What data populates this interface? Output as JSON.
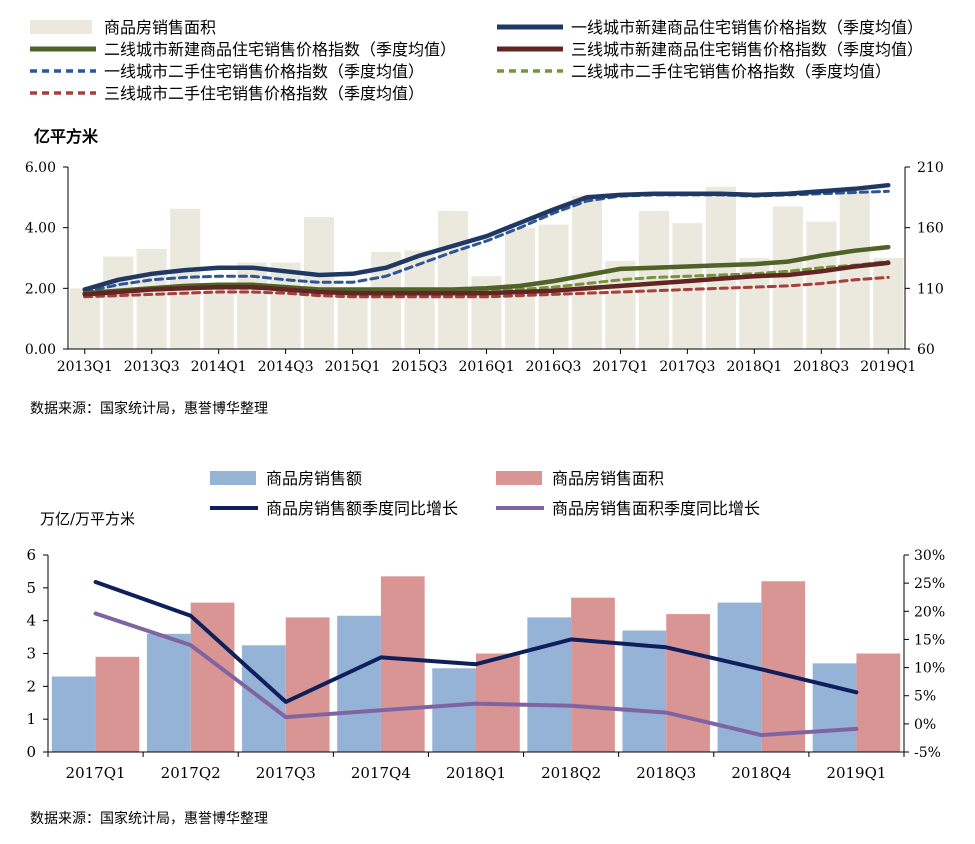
{
  "chart_data": [
    {
      "type": "bar+line",
      "ylabel_left": "亿平方米",
      "ylim_left": [
        0,
        6
      ],
      "yticks_left": [
        "0.00",
        "2.00",
        "4.00",
        "6.00"
      ],
      "ylim_right": [
        60,
        210
      ],
      "yticks_right": [
        "60",
        "110",
        "160",
        "210"
      ],
      "x": [
        "2013Q1",
        "2013Q2",
        "2013Q3",
        "2013Q4",
        "2014Q1",
        "2014Q2",
        "2014Q3",
        "2014Q4",
        "2015Q1",
        "2015Q2",
        "2015Q3",
        "2015Q4",
        "2016Q1",
        "2016Q2",
        "2016Q3",
        "2016Q4",
        "2017Q1",
        "2017Q2",
        "2017Q3",
        "2017Q4",
        "2018Q1",
        "2018Q2",
        "2018Q3",
        "2018Q4",
        "2019Q1"
      ],
      "xtick_labels": [
        "2013Q1",
        "2013Q3",
        "2014Q1",
        "2014Q3",
        "2015Q1",
        "2015Q3",
        "2016Q1",
        "2016Q3",
        "2017Q1",
        "2017Q3",
        "2018Q1",
        "2018Q3",
        "2019Q1"
      ],
      "source": "数据来源：国家统计局，惠誉博华整理",
      "series": [
        {
          "name": "商品房销售面积",
          "kind": "bar",
          "axis": "left",
          "color": "#ebe8dd",
          "values": [
            2.0,
            3.05,
            3.3,
            4.62,
            2.0,
            2.85,
            2.85,
            4.35,
            1.85,
            3.2,
            3.25,
            4.55,
            2.4,
            4.0,
            4.1,
            5.05,
            2.9,
            4.55,
            4.15,
            5.35,
            3.0,
            4.7,
            4.2,
            5.2,
            3.0
          ]
        },
        {
          "name": "一线城市新建商品住宅销售价格指数（季度均值）",
          "kind": "line",
          "axis": "right",
          "color": "#1f3864",
          "dash": "solid",
          "values": [
            109,
            117,
            122,
            125,
            127,
            127,
            124,
            121,
            122,
            127,
            137,
            145,
            153,
            164,
            175,
            185,
            187,
            188,
            188,
            188,
            187,
            188,
            190,
            192,
            195
          ]
        },
        {
          "name": "二线城市新建商品住宅销售价格指数（季度均值）",
          "kind": "line",
          "axis": "right",
          "color": "#4f6228",
          "dash": "solid",
          "values": [
            106,
            108,
            110,
            112,
            113,
            113,
            111,
            109,
            109,
            109,
            109,
            109,
            110,
            112,
            116,
            121,
            126,
            127,
            128,
            129,
            130,
            132,
            137,
            141,
            144
          ]
        },
        {
          "name": "三线城市新建商品住宅销售价格指数（季度均值）",
          "kind": "line",
          "axis": "right",
          "color": "#632523",
          "dash": "solid",
          "values": [
            105,
            107,
            109,
            110,
            111,
            111,
            109,
            107,
            106,
            106,
            106,
            106,
            106,
            107,
            108,
            110,
            112,
            114,
            116,
            118,
            120,
            121,
            124,
            128,
            131
          ]
        },
        {
          "name": "一线城市二手住宅销售价格指数（季度均值）",
          "kind": "line",
          "axis": "right",
          "color": "#2e5597",
          "dash": "dashed",
          "values": [
            107,
            113,
            117,
            119,
            120,
            120,
            117,
            115,
            115,
            120,
            130,
            140,
            149,
            160,
            172,
            182,
            186,
            187,
            187,
            187,
            186,
            187,
            188,
            189,
            190
          ]
        },
        {
          "name": "二线城市二手住宅销售价格指数（季度均值）",
          "kind": "line",
          "axis": "right",
          "color": "#77933c",
          "dash": "dashed",
          "values": [
            105,
            107,
            109,
            110,
            110,
            110,
            109,
            107,
            107,
            107,
            107,
            107,
            108,
            109,
            111,
            114,
            117,
            119,
            120,
            121,
            122,
            124,
            127,
            129,
            132
          ]
        },
        {
          "name": "三线城市二手住宅销售价格指数（季度均值）",
          "kind": "line",
          "axis": "right",
          "color": "#a5403c",
          "dash": "dashed",
          "values": [
            103,
            104,
            105,
            106,
            107,
            107,
            106,
            104,
            103,
            103,
            103,
            103,
            103,
            104,
            105,
            106,
            107,
            108,
            109,
            110,
            111,
            112,
            114,
            117,
            119
          ]
        }
      ]
    },
    {
      "type": "bar+line",
      "ylabel_left": "万亿/万平方米",
      "ylim_left": [
        0,
        6
      ],
      "yticks_left": [
        "0",
        "1",
        "2",
        "3",
        "4",
        "5",
        "6"
      ],
      "ylim_right": [
        -5,
        30
      ],
      "yticks_right": [
        "-5%",
        "0%",
        "5%",
        "10%",
        "15%",
        "20%",
        "25%",
        "30%"
      ],
      "categories": [
        "2017Q1",
        "2017Q2",
        "2017Q3",
        "2017Q4",
        "2018Q1",
        "2018Q2",
        "2018Q3",
        "2018Q4",
        "2019Q1"
      ],
      "source": "数据来源：国家统计局，惠誉博华整理",
      "series": [
        {
          "name": "商品房销售额",
          "kind": "bar",
          "axis": "left",
          "color": "#95b3d7",
          "values": [
            2.3,
            3.6,
            3.25,
            4.15,
            2.55,
            4.1,
            3.7,
            4.55,
            2.7
          ]
        },
        {
          "name": "商品房销售面积",
          "kind": "bar",
          "axis": "left",
          "color": "#d99594",
          "values": [
            2.9,
            4.55,
            4.1,
            5.35,
            3.0,
            4.7,
            4.2,
            5.2,
            3.0
          ]
        },
        {
          "name": "商品房销售额季度同比增长",
          "kind": "line",
          "axis": "right",
          "color": "#0f1f5c",
          "values": [
            25.2,
            19.2,
            3.9,
            11.8,
            10.6,
            15.0,
            13.6,
            9.7,
            5.6
          ]
        },
        {
          "name": "商品房销售面积季度同比增长",
          "kind": "line",
          "axis": "right",
          "color": "#8064a2",
          "values": [
            19.6,
            14.0,
            1.2,
            2.4,
            3.6,
            3.2,
            2.0,
            -2.0,
            -0.9
          ]
        }
      ]
    }
  ]
}
